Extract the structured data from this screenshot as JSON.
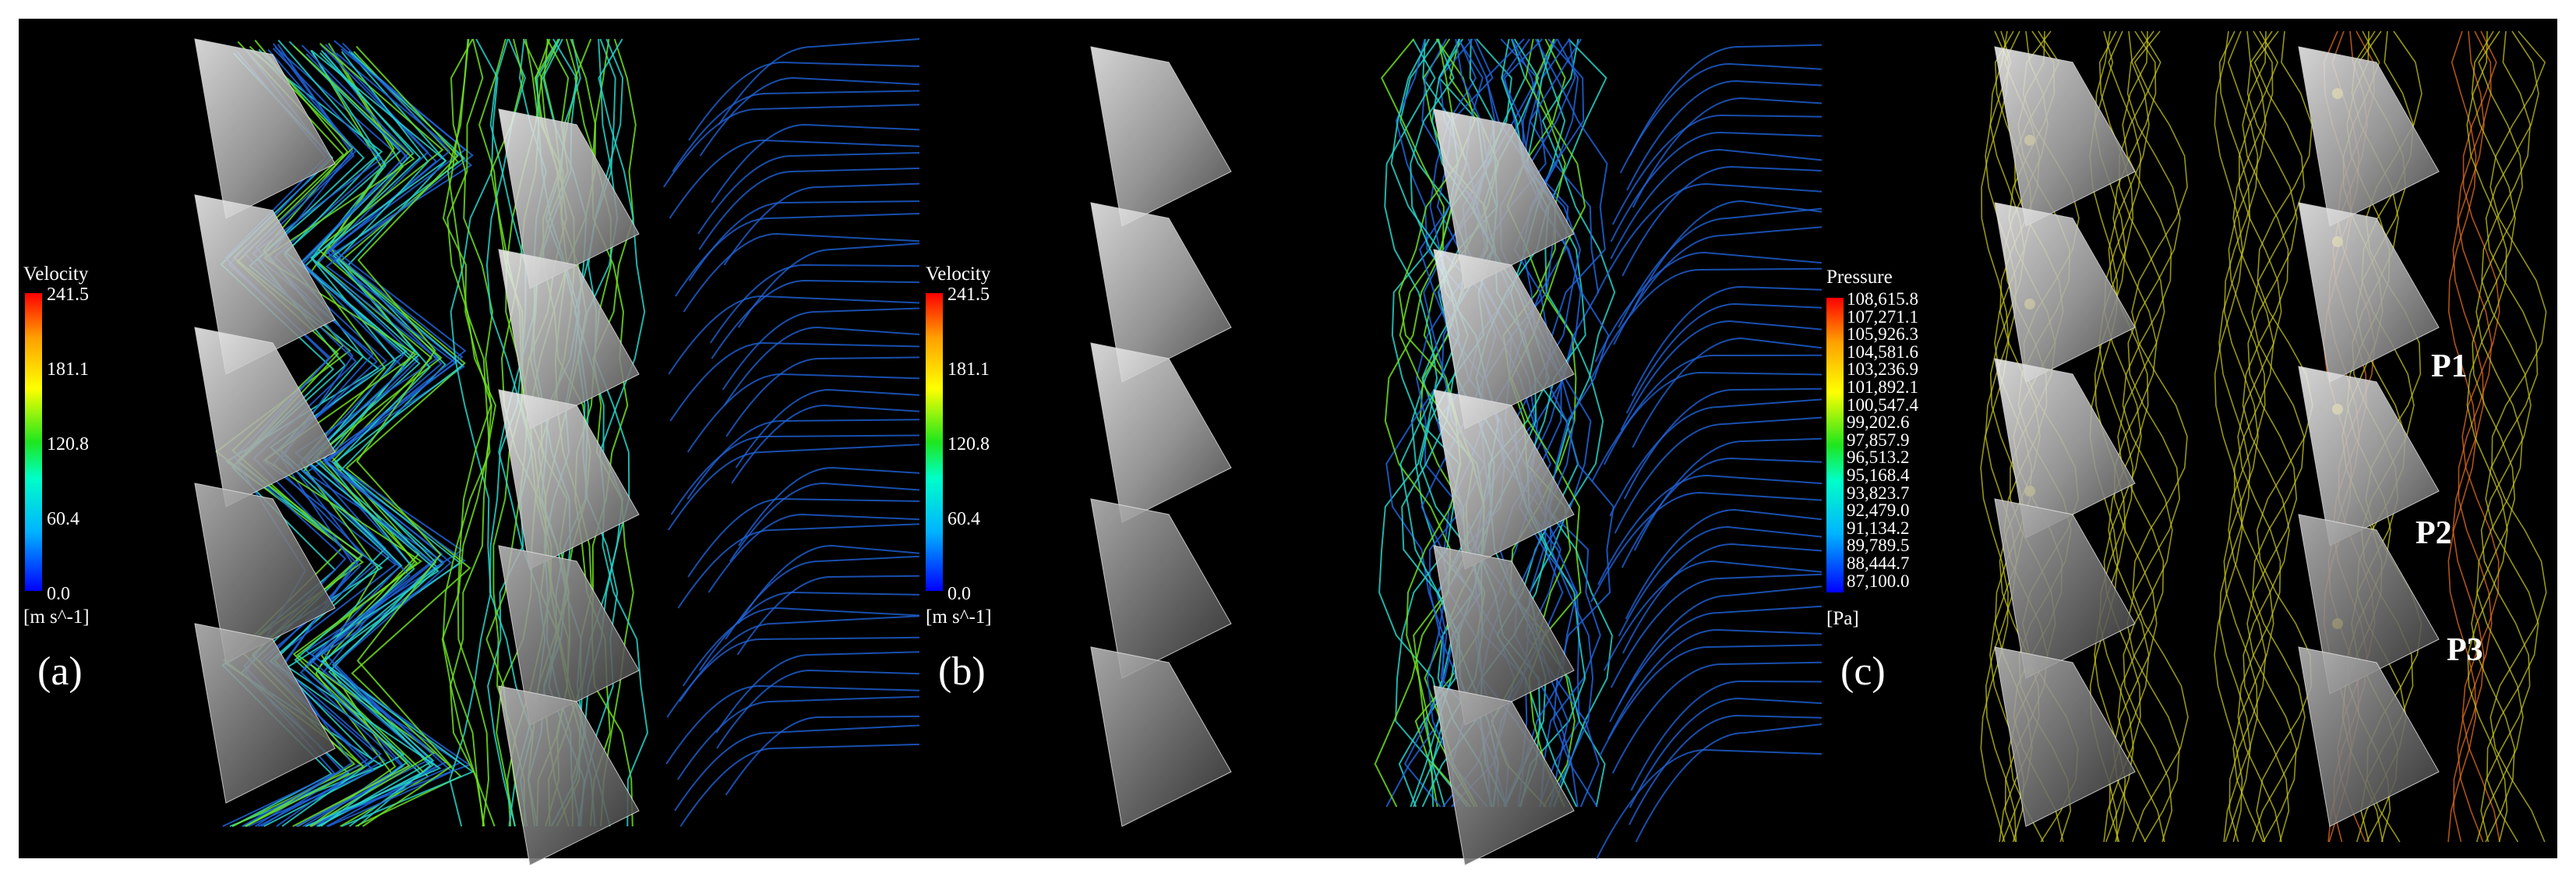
{
  "panels": [
    {
      "label": "(a)",
      "legend": {
        "title": "Velocity",
        "unit": "[m s^-1]",
        "ticks": [
          "241.5",
          "181.1",
          "120.8",
          "60.4",
          "0.0"
        ]
      }
    },
    {
      "label": "(b)",
      "legend": {
        "title": "Velocity",
        "unit": "[m s^-1]",
        "ticks": [
          "241.5",
          "181.1",
          "120.8",
          "60.4",
          "0.0"
        ]
      }
    },
    {
      "label": "(c)",
      "legend": {
        "title": "Pressure",
        "unit": "[Pa]",
        "ticks": [
          "108,615.8",
          "107,271.1",
          "105,926.3",
          "104,581.6",
          "103,236.9",
          "101,892.1",
          "100,547.4",
          "99,202.6",
          "97,857.9",
          "96,513.2",
          "95,168.4",
          "93,823.7",
          "92,479.0",
          "91,134.2",
          "89,789.5",
          "88,444.7",
          "87,100.0"
        ]
      }
    }
  ],
  "point_labels": [
    "P1",
    "P2",
    "P3"
  ],
  "colors": {
    "background": "#000000",
    "blade": "#cfcfcf",
    "streamline_low": "#1f63d8",
    "streamline_mid": "#26d3c9",
    "streamline_high": "#6ddf1e",
    "contour_high": "#e8701c",
    "contour_mid": "#c8c818"
  },
  "colormap": [
    "#0000ff",
    "#00b4ff",
    "#00ffc8",
    "#1ee61e",
    "#ffff00",
    "#ffa000",
    "#ff0000"
  ]
}
